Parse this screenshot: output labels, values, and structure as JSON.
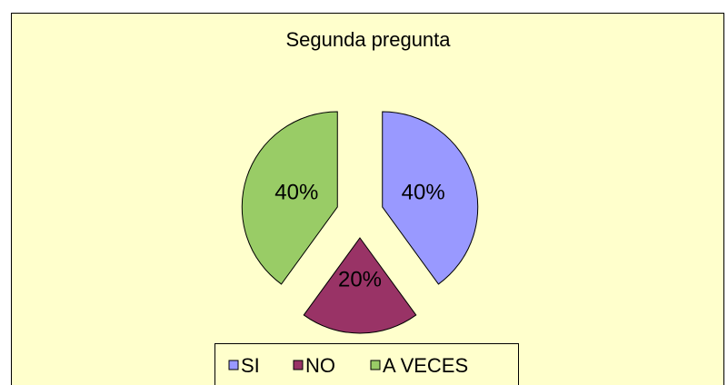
{
  "chart_data": {
    "type": "pie",
    "title": "Segunda pregunta",
    "categories": [
      "SI",
      "NO",
      "A VECES"
    ],
    "values": [
      40,
      20,
      40
    ],
    "value_labels": [
      "40%",
      "20%",
      "40%"
    ],
    "colors": [
      "#9999ff",
      "#993366",
      "#99cc66"
    ],
    "exploded": true,
    "legend": "bottom"
  }
}
